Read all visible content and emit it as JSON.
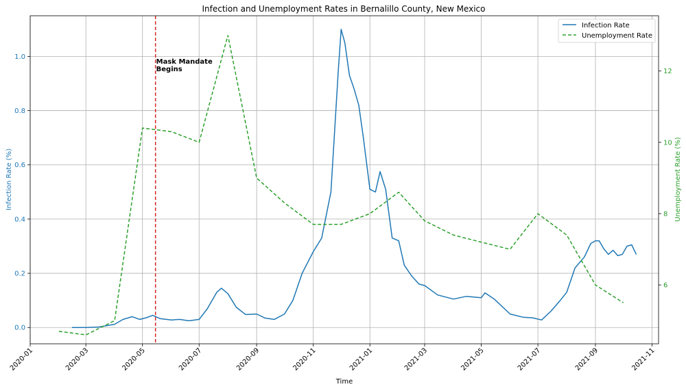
{
  "chart_data": {
    "type": "line",
    "title": "Infection and Unemployment Rates in Bernalillo County, New Mexico",
    "xlabel": "Time",
    "ylabel_left": "Infection Rate (%)",
    "ylabel_right": "Unemployment Rate (%)",
    "xlim": [
      "2020-01-01",
      "2021-11-08"
    ],
    "ylim_left": [
      -0.06,
      1.15
    ],
    "ylim_right": [
      4.35,
      13.55
    ],
    "x_ticks": [
      "2020-01",
      "2020-03",
      "2020-05",
      "2020-07",
      "2020-09",
      "2020-11",
      "2021-01",
      "2021-03",
      "2021-05",
      "2021-07",
      "2021-09",
      "2021-11"
    ],
    "y_ticks_left": [
      "0.0",
      "0.2",
      "0.4",
      "0.6",
      "0.8",
      "1.0"
    ],
    "y_ticks_right": [
      "6",
      "8",
      "10",
      "12"
    ],
    "grid": true,
    "legend_position": "top-right",
    "colors": {
      "infection": "#1f77b4",
      "unemployment": "#2ca02c",
      "mandate": "#d62728",
      "grid": "#b0b0b0"
    },
    "annotation": {
      "date": "2020-05-15",
      "lines": [
        "Mask Mandate",
        "Begins"
      ]
    },
    "series": [
      {
        "name": "Infection Rate",
        "axis": "left",
        "style": "solid",
        "x": [
          "2020-02-15",
          "2020-03-01",
          "2020-03-15",
          "2020-04-01",
          "2020-04-10",
          "2020-04-20",
          "2020-04-28",
          "2020-05-05",
          "2020-05-12",
          "2020-05-20",
          "2020-06-01",
          "2020-06-10",
          "2020-06-20",
          "2020-07-01",
          "2020-07-10",
          "2020-07-20",
          "2020-07-25",
          "2020-08-01",
          "2020-08-10",
          "2020-08-20",
          "2020-09-01",
          "2020-09-10",
          "2020-09-20",
          "2020-10-01",
          "2020-10-10",
          "2020-10-20",
          "2020-11-01",
          "2020-11-10",
          "2020-11-20",
          "2020-11-28",
          "2020-12-01",
          "2020-12-05",
          "2020-12-10",
          "2020-12-15",
          "2020-12-20",
          "2020-12-25",
          "2021-01-01",
          "2021-01-07",
          "2021-01-12",
          "2021-01-18",
          "2021-01-25",
          "2021-02-01",
          "2021-02-07",
          "2021-02-15",
          "2021-02-23",
          "2021-03-01",
          "2021-03-15",
          "2021-04-01",
          "2021-04-15",
          "2021-05-01",
          "2021-05-05",
          "2021-05-15",
          "2021-06-01",
          "2021-06-15",
          "2021-06-25",
          "2021-07-05",
          "2021-07-15",
          "2021-07-25",
          "2021-08-01",
          "2021-08-10",
          "2021-08-20",
          "2021-08-27",
          "2021-09-01",
          "2021-09-05",
          "2021-09-10",
          "2021-09-15",
          "2021-09-20",
          "2021-09-25",
          "2021-09-30",
          "2021-10-05",
          "2021-10-10",
          "2021-10-15"
        ],
        "values": [
          0.0,
          0.0,
          0.002,
          0.012,
          0.03,
          0.04,
          0.03,
          0.036,
          0.045,
          0.033,
          0.028,
          0.03,
          0.025,
          0.03,
          0.07,
          0.13,
          0.145,
          0.125,
          0.075,
          0.048,
          0.05,
          0.035,
          0.03,
          0.05,
          0.1,
          0.2,
          0.28,
          0.33,
          0.5,
          0.95,
          1.1,
          1.05,
          0.93,
          0.88,
          0.82,
          0.7,
          0.51,
          0.5,
          0.575,
          0.51,
          0.33,
          0.32,
          0.23,
          0.19,
          0.16,
          0.155,
          0.12,
          0.105,
          0.115,
          0.11,
          0.128,
          0.105,
          0.05,
          0.038,
          0.036,
          0.028,
          0.06,
          0.1,
          0.13,
          0.22,
          0.26,
          0.31,
          0.32,
          0.32,
          0.29,
          0.27,
          0.285,
          0.265,
          0.27,
          0.3,
          0.305,
          0.27
        ]
      },
      {
        "name": "Unemployment Rate",
        "axis": "right",
        "style": "dashed",
        "x": [
          "2020-02-01",
          "2020-03-01",
          "2020-04-01",
          "2020-05-01",
          "2020-06-01",
          "2020-07-01",
          "2020-08-01",
          "2020-09-01",
          "2020-10-01",
          "2020-11-01",
          "2020-12-01",
          "2021-01-01",
          "2021-02-01",
          "2021-03-01",
          "2021-04-01",
          "2021-05-01",
          "2021-06-01",
          "2021-07-01",
          "2021-08-01",
          "2021-09-01",
          "2021-10-01"
        ],
        "values": [
          4.7,
          4.6,
          5.0,
          10.4,
          10.3,
          10.0,
          13.0,
          9.0,
          8.3,
          7.7,
          7.7,
          8.0,
          8.6,
          7.8,
          7.4,
          7.2,
          7.0,
          8.0,
          7.4,
          6.0,
          5.5
        ]
      }
    ]
  }
}
